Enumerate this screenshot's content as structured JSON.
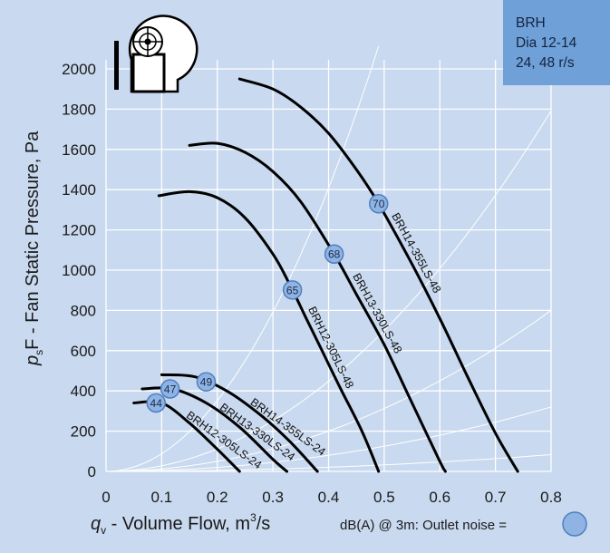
{
  "colors": {
    "background": "#c9d9ef",
    "gridline": "#ffffff",
    "curve": "#000000",
    "badge_fill": "#8fb4e3",
    "badge_stroke": "#4f7fc0",
    "info_box": "#6fa0d8"
  },
  "icon": "centrifugal-fan-icon",
  "info_box": {
    "line1": "BRH",
    "line2": "Dia 12-14",
    "line3": "24, 48 r/s"
  },
  "legend": {
    "label": "dB(A) @ 3m:  Outlet noise  ="
  },
  "chart_data": {
    "type": "line",
    "xlabel": "q",
    "xlabel_sub": "v",
    "xlabel_rest": " - Volume Flow, m",
    "xlabel_sup": "3",
    "xlabel_end": "/s",
    "ylabel": "p",
    "ylabel_sub": "s",
    "ylabel_rest": "F - Fan Static Pressure, Pa",
    "xlim": [
      0,
      0.8
    ],
    "ylim": [
      0,
      2000
    ],
    "x_ticks": [
      "0",
      "0.1",
      "0.2",
      "0.3",
      "0.4",
      "0.5",
      "0.6",
      "0.7",
      "0.8"
    ],
    "y_ticks": [
      "0",
      "200",
      "400",
      "600",
      "800",
      "1000",
      "1200",
      "1400",
      "1600",
      "1800",
      "2000"
    ],
    "grid": true,
    "series": [
      {
        "name": "BRH12-305LS-24",
        "noise_dba": "44",
        "x": [
          0.05,
          0.1,
          0.15,
          0.2,
          0.24
        ],
        "y": [
          340,
          340,
          240,
          110,
          0
        ]
      },
      {
        "name": "BRH13-330LS-24",
        "noise_dba": "47",
        "x": [
          0.065,
          0.12,
          0.18,
          0.24,
          0.3,
          0.325
        ],
        "y": [
          410,
          410,
          340,
          220,
          60,
          0
        ]
      },
      {
        "name": "BRH14-355LS-24",
        "noise_dba": "49",
        "x": [
          0.1,
          0.16,
          0.22,
          0.28,
          0.33,
          0.38
        ],
        "y": [
          480,
          470,
          395,
          275,
          150,
          0
        ]
      },
      {
        "name": "BRH12-305LS-48",
        "noise_dba": "65",
        "x": [
          0.095,
          0.15,
          0.2,
          0.25,
          0.3,
          0.33,
          0.36,
          0.39,
          0.42,
          0.46,
          0.49
        ],
        "y": [
          1370,
          1390,
          1360,
          1260,
          1080,
          930,
          760,
          590,
          420,
          200,
          0
        ]
      },
      {
        "name": "BRH13-330LS-48",
        "noise_dba": "68",
        "x": [
          0.15,
          0.2,
          0.25,
          0.3,
          0.35,
          0.41,
          0.45,
          0.5,
          0.55,
          0.6,
          0.61
        ],
        "y": [
          1620,
          1630,
          1585,
          1490,
          1340,
          1080,
          880,
          630,
          340,
          50,
          0
        ]
      },
      {
        "name": "BRH14-355LS-48",
        "noise_dba": "70",
        "x": [
          0.24,
          0.3,
          0.35,
          0.4,
          0.45,
          0.49,
          0.55,
          0.6,
          0.65,
          0.7,
          0.74
        ],
        "y": [
          1950,
          1900,
          1810,
          1680,
          1500,
          1330,
          1030,
          760,
          470,
          190,
          0
        ]
      }
    ]
  }
}
